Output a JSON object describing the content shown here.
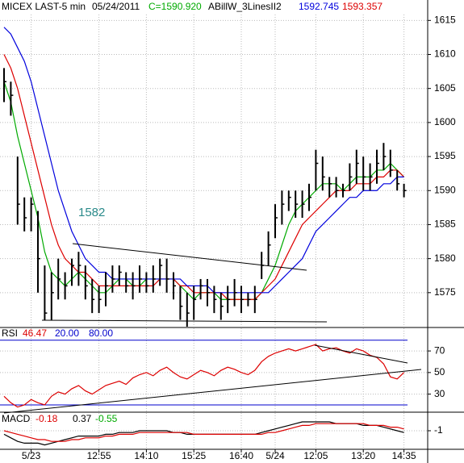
{
  "chart_data": [
    {
      "type": "ohlc",
      "title": "MICEX LAST-5 min",
      "date": "05/24/2011",
      "close_label": "C=1590.920",
      "indicator": "ABillW_3LinesII2",
      "indicator_values": [
        "1592.745",
        "1593.357"
      ],
      "annotation": "1582",
      "high": [
        1608,
        1606,
        1595,
        1589,
        1589,
        1587,
        1579,
        1578,
        1580,
        1578,
        1580,
        1581,
        1579,
        1577,
        1576,
        1578,
        1579,
        1579,
        1578,
        1578,
        1579,
        1578,
        1579,
        1580,
        1580,
        1578,
        1576,
        1575,
        1576,
        1577,
        1577,
        1576,
        1575,
        1576,
        1577,
        1576,
        1575,
        1576,
        1581,
        1584,
        1588,
        1590,
        1590,
        1590,
        1590,
        1591,
        1596,
        1595,
        1592,
        1592,
        1591,
        1594,
        1596,
        1595,
        1594,
        1596,
        1597,
        1596,
        1593,
        1591
      ],
      "low": [
        1603,
        1601,
        1585,
        1584,
        1584,
        1575,
        1571,
        1571,
        1574,
        1574,
        1576,
        1576,
        1574,
        1572,
        1572,
        1573,
        1575,
        1576,
        1575,
        1574,
        1575,
        1575,
        1575,
        1576,
        1575,
        1574,
        1571,
        1570,
        1571,
        1574,
        1573,
        1572,
        1571,
        1572,
        1573,
        1572,
        1573,
        1572,
        1577,
        1579,
        1583,
        1585,
        1587,
        1586,
        1586,
        1587,
        1590,
        1590,
        1589,
        1589,
        1589,
        1590,
        1591,
        1590,
        1590,
        1591,
        1593,
        1592,
        1590,
        1589
      ],
      "close": [
        1606,
        1604,
        1588,
        1586,
        1588,
        1580,
        1572,
        1575,
        1577,
        1576,
        1579,
        1579,
        1576,
        1574,
        1574,
        1576,
        1577,
        1578,
        1576,
        1576,
        1577,
        1576,
        1577,
        1579,
        1577,
        1576,
        1573,
        1572,
        1574,
        1576,
        1575,
        1574,
        1573,
        1574,
        1575,
        1574,
        1574,
        1574,
        1579,
        1582,
        1586,
        1588,
        1589,
        1588,
        1588,
        1589,
        1594,
        1592,
        1591,
        1590,
        1590,
        1592,
        1594,
        1592,
        1592,
        1594,
        1595,
        1593,
        1591,
        1590
      ],
      "bar_color": "#000000",
      "series": [
        {
          "color": "#00aa00",
          "values": [
            1606,
            1603,
            1598,
            1594,
            1590,
            1586,
            1581,
            1578,
            1577,
            1576,
            1577,
            1578,
            1577,
            1576,
            1575,
            1575,
            1576,
            1577,
            1577,
            1576,
            1576,
            1577,
            1577,
            1577,
            1577,
            1577,
            1576,
            1575,
            1574,
            1575,
            1575,
            1575,
            1574,
            1574,
            1574,
            1574,
            1574,
            1574,
            1575,
            1577,
            1579,
            1582,
            1585,
            1587,
            1588,
            1589,
            1590,
            1591,
            1591,
            1591,
            1590,
            1591,
            1592,
            1592,
            1592,
            1593,
            1593,
            1594,
            1593,
            1592
          ]
        },
        {
          "color": "#dd0000",
          "values": [
            1610,
            1608,
            1605,
            1601,
            1597,
            1593,
            1589,
            1585,
            1582,
            1580,
            1579,
            1578,
            1578,
            1577,
            1576,
            1576,
            1576,
            1576,
            1576,
            1576,
            1576,
            1576,
            1576,
            1577,
            1577,
            1577,
            1576,
            1576,
            1575,
            1575,
            1575,
            1575,
            1575,
            1574,
            1574,
            1574,
            1574,
            1574,
            1575,
            1576,
            1577,
            1579,
            1581,
            1583,
            1585,
            1586,
            1587,
            1588,
            1589,
            1590,
            1590,
            1590,
            1591,
            1591,
            1591,
            1592,
            1592,
            1593,
            1593,
            1592
          ]
        },
        {
          "color": "#0000dd",
          "values": [
            1614,
            1613,
            1611,
            1609,
            1606,
            1602,
            1598,
            1594,
            1590,
            1587,
            1584,
            1582,
            1580,
            1579,
            1578,
            1578,
            1577,
            1577,
            1577,
            1577,
            1577,
            1577,
            1577,
            1577,
            1577,
            1577,
            1577,
            1576,
            1576,
            1576,
            1576,
            1575,
            1575,
            1575,
            1575,
            1575,
            1575,
            1575,
            1575,
            1575,
            1576,
            1577,
            1578,
            1579,
            1580,
            1582,
            1584,
            1585,
            1586,
            1587,
            1588,
            1589,
            1589,
            1590,
            1590,
            1590,
            1591,
            1591,
            1592,
            1592
          ]
        }
      ],
      "ylim": [
        1570,
        1618
      ],
      "yticks": [
        1575,
        1580,
        1585,
        1590,
        1595,
        1600,
        1605,
        1610,
        1615
      ],
      "grid": true
    },
    {
      "type": "line",
      "title": "RSI",
      "header_values": [
        "46.47",
        "20.00",
        "80.00"
      ],
      "levels": [
        20,
        80
      ],
      "level_color": "#0000cc",
      "series": [
        {
          "color": "#dd0000",
          "values": [
            28,
            22,
            18,
            20,
            25,
            22,
            20,
            28,
            32,
            30,
            35,
            38,
            33,
            30,
            34,
            38,
            40,
            42,
            39,
            45,
            48,
            50,
            47,
            52,
            55,
            50,
            46,
            44,
            48,
            52,
            50,
            47,
            52,
            55,
            53,
            50,
            48,
            52,
            60,
            65,
            68,
            70,
            72,
            70,
            72,
            74,
            76,
            70,
            72,
            73,
            70,
            68,
            72,
            70,
            66,
            64,
            58,
            46,
            44,
            50
          ]
        }
      ],
      "ylim": [
        14,
        91
      ],
      "yticks": [
        30,
        50,
        70
      ],
      "grid": true
    },
    {
      "type": "line",
      "title": "MACD",
      "header_values": [
        "-0.18",
        "0.37",
        "-0.55"
      ],
      "categories": [
        null,
        null,
        null,
        null,
        "5/23",
        null,
        null,
        null,
        null,
        null,
        null,
        null,
        null,
        null,
        "12:55",
        null,
        null,
        null,
        null,
        null,
        null,
        "14:10",
        null,
        null,
        null,
        null,
        null,
        null,
        "15:25",
        null,
        null,
        null,
        null,
        null,
        null,
        "16:40",
        null,
        null,
        null,
        null,
        "5/24",
        null,
        null,
        null,
        null,
        null,
        "12:05",
        null,
        null,
        null,
        null,
        null,
        null,
        "13:20",
        null,
        null,
        null,
        null,
        null,
        "14:35"
      ],
      "series": [
        {
          "color": "#000000",
          "values": [
            -1.2,
            -1.4,
            -1.6,
            -1.7,
            -1.7,
            -1.7,
            -1.8,
            -1.7,
            -1.6,
            -1.5,
            -1.4,
            -1.3,
            -1.3,
            -1.3,
            -1.3,
            -1.2,
            -1.2,
            -1.1,
            -1.1,
            -1.1,
            -1.0,
            -1.0,
            -1.0,
            -1.0,
            -1.0,
            -1.1,
            -1.1,
            -1.2,
            -1.2,
            -1.2,
            -1.2,
            -1.2,
            -1.2,
            -1.2,
            -1.2,
            -1.2,
            -1.2,
            -1.2,
            -1.1,
            -1.0,
            -0.9,
            -0.8,
            -0.7,
            -0.6,
            -0.5,
            -0.5,
            -0.5,
            -0.5,
            -0.5,
            -0.6,
            -0.6,
            -0.6,
            -0.6,
            -0.7,
            -0.7,
            -0.7,
            -0.8,
            -0.9,
            -1.0,
            -1.1
          ]
        },
        {
          "color": "#dd0000",
          "values": [
            -1.0,
            -1.1,
            -1.2,
            -1.3,
            -1.4,
            -1.5,
            -1.5,
            -1.6,
            -1.6,
            -1.6,
            -1.5,
            -1.5,
            -1.4,
            -1.4,
            -1.4,
            -1.3,
            -1.3,
            -1.2,
            -1.2,
            -1.2,
            -1.1,
            -1.1,
            -1.1,
            -1.1,
            -1.1,
            -1.1,
            -1.1,
            -1.1,
            -1.2,
            -1.2,
            -1.2,
            -1.2,
            -1.2,
            -1.2,
            -1.2,
            -1.2,
            -1.2,
            -1.2,
            -1.2,
            -1.1,
            -1.1,
            -1.0,
            -0.9,
            -0.8,
            -0.7,
            -0.7,
            -0.6,
            -0.6,
            -0.6,
            -0.6,
            -0.6,
            -0.6,
            -0.6,
            -0.6,
            -0.7,
            -0.7,
            -0.7,
            -0.8,
            -0.8,
            -0.9
          ]
        }
      ],
      "ylim": [
        -2,
        0
      ],
      "yticks": [
        -1
      ],
      "grid": true
    }
  ]
}
